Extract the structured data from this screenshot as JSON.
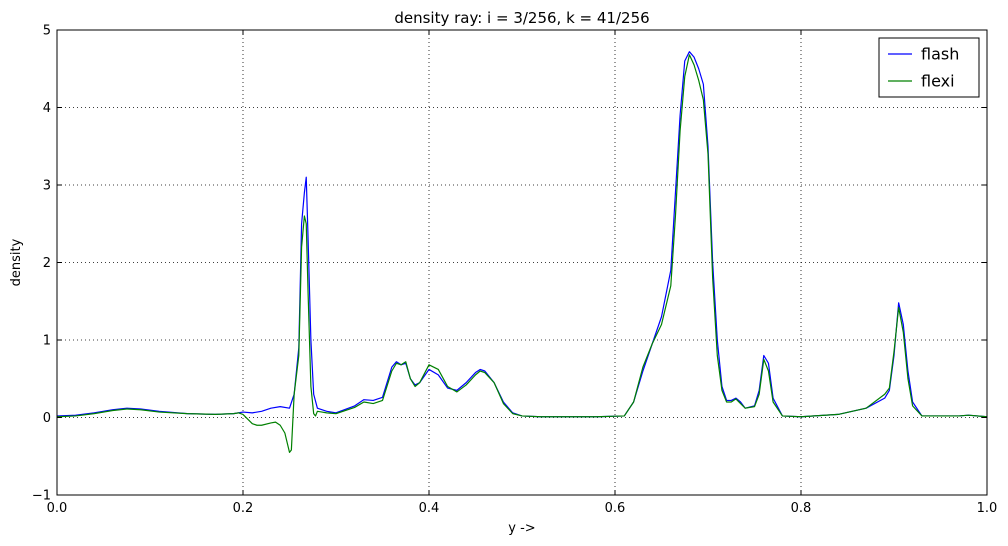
{
  "chart_data": {
    "type": "line",
    "title": "density ray: i = 3/256, k = 41/256",
    "xlabel": "y ->",
    "ylabel": "density",
    "xlim": [
      0.0,
      1.0
    ],
    "ylim": [
      -1,
      5
    ],
    "xticks": [
      0.0,
      0.2,
      0.4,
      0.6,
      0.8,
      1.0
    ],
    "xtick_labels": [
      "0.0",
      "0.2",
      "0.4",
      "0.6",
      "0.8",
      "1.0"
    ],
    "yticks": [
      -1,
      0,
      1,
      2,
      3,
      4,
      5
    ],
    "ytick_labels": [
      "−1",
      "0",
      "1",
      "2",
      "3",
      "4",
      "5"
    ],
    "grid": true,
    "legend_position": "top-right",
    "series": [
      {
        "name": "flash",
        "color": "#0000ff",
        "x": [
          0.0,
          0.02,
          0.04,
          0.06,
          0.075,
          0.09,
          0.11,
          0.14,
          0.17,
          0.19,
          0.2,
          0.21,
          0.22,
          0.23,
          0.24,
          0.25,
          0.255,
          0.26,
          0.263,
          0.266,
          0.268,
          0.27,
          0.273,
          0.276,
          0.28,
          0.29,
          0.3,
          0.32,
          0.33,
          0.34,
          0.35,
          0.36,
          0.365,
          0.37,
          0.375,
          0.38,
          0.385,
          0.39,
          0.4,
          0.41,
          0.42,
          0.43,
          0.44,
          0.45,
          0.455,
          0.46,
          0.47,
          0.48,
          0.49,
          0.5,
          0.52,
          0.55,
          0.58,
          0.61,
          0.62,
          0.63,
          0.64,
          0.65,
          0.66,
          0.665,
          0.67,
          0.675,
          0.68,
          0.685,
          0.69,
          0.695,
          0.7,
          0.705,
          0.71,
          0.715,
          0.72,
          0.725,
          0.73,
          0.735,
          0.74,
          0.75,
          0.755,
          0.76,
          0.765,
          0.77,
          0.78,
          0.8,
          0.84,
          0.87,
          0.89,
          0.895,
          0.9,
          0.905,
          0.91,
          0.915,
          0.92,
          0.93,
          0.95,
          0.97,
          0.98,
          1.0
        ],
        "y": [
          0.02,
          0.03,
          0.06,
          0.1,
          0.12,
          0.11,
          0.08,
          0.05,
          0.04,
          0.05,
          0.07,
          0.06,
          0.08,
          0.12,
          0.14,
          0.12,
          0.3,
          0.9,
          2.5,
          2.9,
          3.1,
          2.3,
          1.0,
          0.3,
          0.12,
          0.08,
          0.06,
          0.15,
          0.23,
          0.22,
          0.26,
          0.65,
          0.72,
          0.68,
          0.7,
          0.5,
          0.42,
          0.45,
          0.62,
          0.55,
          0.38,
          0.35,
          0.45,
          0.58,
          0.62,
          0.6,
          0.45,
          0.2,
          0.06,
          0.02,
          0.01,
          0.01,
          0.01,
          0.02,
          0.2,
          0.6,
          0.95,
          1.3,
          1.9,
          2.9,
          3.9,
          4.6,
          4.72,
          4.65,
          4.5,
          4.3,
          3.5,
          2.0,
          1.0,
          0.4,
          0.22,
          0.22,
          0.25,
          0.2,
          0.12,
          0.15,
          0.35,
          0.8,
          0.7,
          0.25,
          0.02,
          0.01,
          0.04,
          0.12,
          0.25,
          0.35,
          0.8,
          1.48,
          1.2,
          0.6,
          0.2,
          0.02,
          0.02,
          0.02,
          0.03,
          0.01
        ]
      },
      {
        "name": "flexi",
        "color": "#008000",
        "x": [
          0.0,
          0.02,
          0.04,
          0.06,
          0.075,
          0.09,
          0.11,
          0.14,
          0.17,
          0.19,
          0.195,
          0.2,
          0.205,
          0.21,
          0.215,
          0.22,
          0.23,
          0.235,
          0.24,
          0.245,
          0.25,
          0.252,
          0.255,
          0.26,
          0.263,
          0.266,
          0.268,
          0.27,
          0.273,
          0.276,
          0.278,
          0.28,
          0.285,
          0.29,
          0.3,
          0.32,
          0.33,
          0.34,
          0.35,
          0.36,
          0.365,
          0.37,
          0.375,
          0.38,
          0.385,
          0.39,
          0.4,
          0.41,
          0.42,
          0.43,
          0.44,
          0.45,
          0.455,
          0.46,
          0.47,
          0.48,
          0.49,
          0.5,
          0.52,
          0.55,
          0.58,
          0.61,
          0.62,
          0.63,
          0.64,
          0.65,
          0.66,
          0.665,
          0.67,
          0.675,
          0.68,
          0.685,
          0.69,
          0.695,
          0.7,
          0.705,
          0.71,
          0.715,
          0.72,
          0.725,
          0.73,
          0.735,
          0.74,
          0.75,
          0.755,
          0.76,
          0.765,
          0.77,
          0.78,
          0.8,
          0.84,
          0.87,
          0.89,
          0.895,
          0.9,
          0.905,
          0.91,
          0.915,
          0.92,
          0.93,
          0.95,
          0.97,
          0.98,
          1.0
        ],
        "y": [
          0.01,
          0.02,
          0.05,
          0.09,
          0.11,
          0.1,
          0.07,
          0.05,
          0.04,
          0.05,
          0.06,
          0.04,
          -0.02,
          -0.08,
          -0.1,
          -0.1,
          -0.07,
          -0.06,
          -0.1,
          -0.2,
          -0.45,
          -0.42,
          0.3,
          0.8,
          2.2,
          2.6,
          2.5,
          1.6,
          0.4,
          0.05,
          0.02,
          0.08,
          0.07,
          0.06,
          0.05,
          0.13,
          0.2,
          0.18,
          0.22,
          0.6,
          0.7,
          0.68,
          0.72,
          0.5,
          0.4,
          0.45,
          0.68,
          0.62,
          0.4,
          0.33,
          0.42,
          0.55,
          0.6,
          0.58,
          0.45,
          0.18,
          0.05,
          0.02,
          0.01,
          0.01,
          0.01,
          0.02,
          0.2,
          0.65,
          0.95,
          1.2,
          1.7,
          2.6,
          3.7,
          4.4,
          4.68,
          4.55,
          4.35,
          4.1,
          3.4,
          1.8,
          0.8,
          0.35,
          0.2,
          0.2,
          0.24,
          0.18,
          0.12,
          0.14,
          0.3,
          0.75,
          0.6,
          0.2,
          0.02,
          0.01,
          0.04,
          0.12,
          0.3,
          0.38,
          0.85,
          1.42,
          1.1,
          0.5,
          0.15,
          0.02,
          0.02,
          0.02,
          0.03,
          0.01
        ]
      }
    ]
  }
}
